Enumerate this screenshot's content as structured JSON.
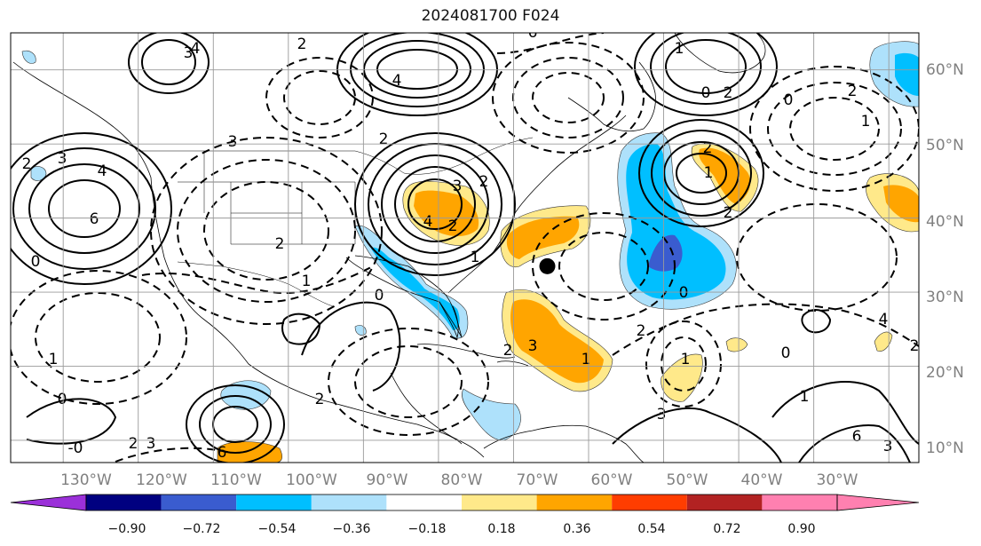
{
  "title": "2024081700 F024",
  "map": {
    "projection": "equirectangular",
    "lon_range": [
      -137,
      -16
    ],
    "lat_range": [
      7,
      65
    ],
    "gridlines": true,
    "lon_ticks": [
      "130°W",
      "120°W",
      "110°W",
      "100°W",
      "90°W",
      "80°W",
      "70°W",
      "60°W",
      "50°W",
      "40°W",
      "30°W"
    ],
    "lat_ticks": [
      "60°N",
      "50°N",
      "40°N",
      "30°N",
      "20°N",
      "10°N"
    ],
    "marker": {
      "lon": -65.5,
      "lat": 33.5,
      "color": "#000000"
    }
  },
  "colorbar": {
    "levels": [
      "−0.90",
      "−0.72",
      "−0.54",
      "−0.36",
      "−0.18",
      "0.18",
      "0.36",
      "0.54",
      "0.72",
      "0.90"
    ],
    "colors": [
      "#9b30d9",
      "#000080",
      "#3a5ccf",
      "#00bfff",
      "#aee1fb",
      "#ffffff",
      "#ffe98a",
      "#ffa500",
      "#ff3d00",
      "#b22222",
      "#ff80b0"
    ],
    "extend": "both"
  },
  "shaded_regions": [
    {
      "name": "blue-atlantic",
      "color": "#00bfff"
    },
    {
      "name": "blue-atlantic-core",
      "color": "#3a5ccf"
    },
    {
      "name": "orange-great-lakes",
      "color": "#ffa500"
    },
    {
      "name": "orange-atlantic-west",
      "color": "#ffa500"
    },
    {
      "name": "orange-caribbean-east",
      "color": "#ffa500"
    },
    {
      "name": "orange-north-atlantic",
      "color": "#ffa500"
    },
    {
      "name": "orange-east-atlantic",
      "color": "#ffa500"
    },
    {
      "name": "blue-gulf",
      "color": "#00bfff"
    },
    {
      "name": "blue-pacific-mexico",
      "color": "#aee1fb"
    },
    {
      "name": "blue-caribbean-south",
      "color": "#aee1fb"
    },
    {
      "name": "blue-arctic-east",
      "color": "#aee1fb"
    }
  ],
  "contour_labels": [
    "6",
    "4",
    "3",
    "2",
    "1",
    "0",
    "-0",
    "3",
    "2",
    "1",
    "0",
    "4",
    "3",
    "2",
    "6",
    "4",
    "2",
    "2",
    "3",
    "4",
    "2",
    "1",
    "0",
    "3",
    "2",
    "1",
    "0",
    "2",
    "1",
    "2",
    "1",
    "0",
    "2",
    "1",
    "2",
    "0",
    "2",
    "3",
    "1",
    "2",
    "1",
    "6",
    "3",
    "2",
    "4",
    "0",
    "6",
    "3",
    "2"
  ]
}
